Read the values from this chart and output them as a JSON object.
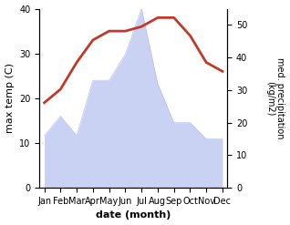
{
  "months": [
    "Jan",
    "Feb",
    "Mar",
    "Apr",
    "May",
    "Jun",
    "Jul",
    "Aug",
    "Sep",
    "Oct",
    "Nov",
    "Dec"
  ],
  "temperature": [
    19,
    22,
    28,
    33,
    35,
    35,
    36,
    38,
    38,
    34,
    28,
    26
  ],
  "precipitation": [
    16,
    22,
    16,
    33,
    33,
    41,
    55,
    32,
    20,
    20,
    15,
    15
  ],
  "temp_color": "#c0392b",
  "precip_fill_color": "#b8c4ee",
  "precip_fill_alpha": 0.75,
  "temp_ylim": [
    0,
    40
  ],
  "precip_ylim": [
    0,
    55
  ],
  "temp_yticks": [
    0,
    10,
    20,
    30,
    40
  ],
  "precip_yticks": [
    0,
    10,
    20,
    30,
    40,
    50
  ],
  "xlabel": "date (month)",
  "ylabel_left": "max temp (C)",
  "ylabel_right": "med. precipitation\n(kg/m2)",
  "bg_color": "#ffffff",
  "line_width": 2.0
}
